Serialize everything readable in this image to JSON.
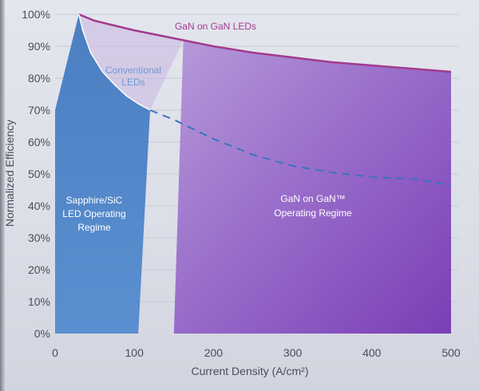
{
  "chart_data": {
    "type": "line",
    "title": "",
    "xlabel": "Current Density (A/cm²)",
    "ylabel": "Normalized Efficiency",
    "xlim": [
      0,
      500
    ],
    "ylim": [
      0,
      100
    ],
    "x_ticks": [
      "0",
      "100",
      "200",
      "300",
      "400",
      "500"
    ],
    "y_ticks": [
      "0%",
      "10%",
      "20%",
      "30%",
      "40%",
      "50%",
      "60%",
      "70%",
      "80%",
      "90%",
      "100%"
    ],
    "grid": true,
    "series": [
      {
        "name": "GaN on GaN LEDs",
        "style": "solid",
        "color": "#a23a8e",
        "points": [
          [
            30,
            100
          ],
          [
            50,
            98
          ],
          [
            100,
            95
          ],
          [
            150,
            92.5
          ],
          [
            170,
            91.5
          ],
          [
            200,
            90
          ],
          [
            250,
            88
          ],
          [
            300,
            86.5
          ],
          [
            350,
            85
          ],
          [
            400,
            84
          ],
          [
            450,
            83
          ],
          [
            500,
            82
          ]
        ]
      },
      {
        "name": "Conventional LEDs",
        "style": "solid",
        "color": "#ffffff",
        "points": [
          [
            30,
            100
          ],
          [
            35,
            95
          ],
          [
            45,
            88
          ],
          [
            60,
            82
          ],
          [
            75,
            78
          ],
          [
            90,
            74.5
          ],
          [
            105,
            72
          ],
          [
            120,
            70
          ]
        ]
      },
      {
        "name": "",
        "style": "dashed",
        "color": "#3b73c2",
        "points": [
          [
            120,
            70
          ],
          [
            150,
            67
          ],
          [
            200,
            61
          ],
          [
            250,
            56
          ],
          [
            300,
            52.5
          ],
          [
            350,
            50.5
          ],
          [
            400,
            49
          ],
          [
            450,
            48.5
          ],
          [
            500,
            46.5
          ]
        ]
      }
    ],
    "regions": [
      {
        "label": "Sapphire/SiC LED Operating Regime",
        "x_start": 0,
        "x_end": 105,
        "color": "#4f86c6"
      },
      {
        "label": "GaN on GaN™ Operating Regime",
        "x_start": 150,
        "x_end": 500,
        "color": "#8b55c0"
      }
    ],
    "annotations": {
      "gan_curve_label": "GaN on GaN LEDs",
      "conventional_label_line1": "Conventional",
      "conventional_label_line2": "LEDs",
      "sapphire_line1": "Sapphire/SiC",
      "sapphire_line2": "LED Operating",
      "sapphire_line3": "Regime",
      "gan_region_line1": "GaN on GaN™",
      "gan_region_line2": "Operating Regime"
    }
  },
  "colors": {
    "background": "#e0e2ea",
    "gan_curve": "#a23a8e",
    "dashed_curve": "#3b73c2",
    "grid": "#c8cad4",
    "text": "#4b4e57",
    "conventional_label": "#5a8fd0"
  }
}
